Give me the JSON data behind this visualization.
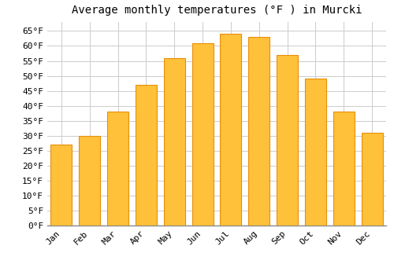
{
  "title": "Average monthly temperatures (°F ) in Murcki",
  "months": [
    "Jan",
    "Feb",
    "Mar",
    "Apr",
    "May",
    "Jun",
    "Jul",
    "Aug",
    "Sep",
    "Oct",
    "Nov",
    "Dec"
  ],
  "values": [
    27,
    30,
    38,
    47,
    56,
    61,
    64,
    63,
    57,
    49,
    38,
    31
  ],
  "bar_color": "#FFC03A",
  "bar_edge_color": "#E8900A",
  "background_color": "#FFFFFF",
  "grid_color": "#CCCCCC",
  "ylim": [
    0,
    68
  ],
  "yticks": [
    0,
    5,
    10,
    15,
    20,
    25,
    30,
    35,
    40,
    45,
    50,
    55,
    60,
    65
  ],
  "title_fontsize": 10,
  "tick_fontsize": 8,
  "font_family": "monospace"
}
